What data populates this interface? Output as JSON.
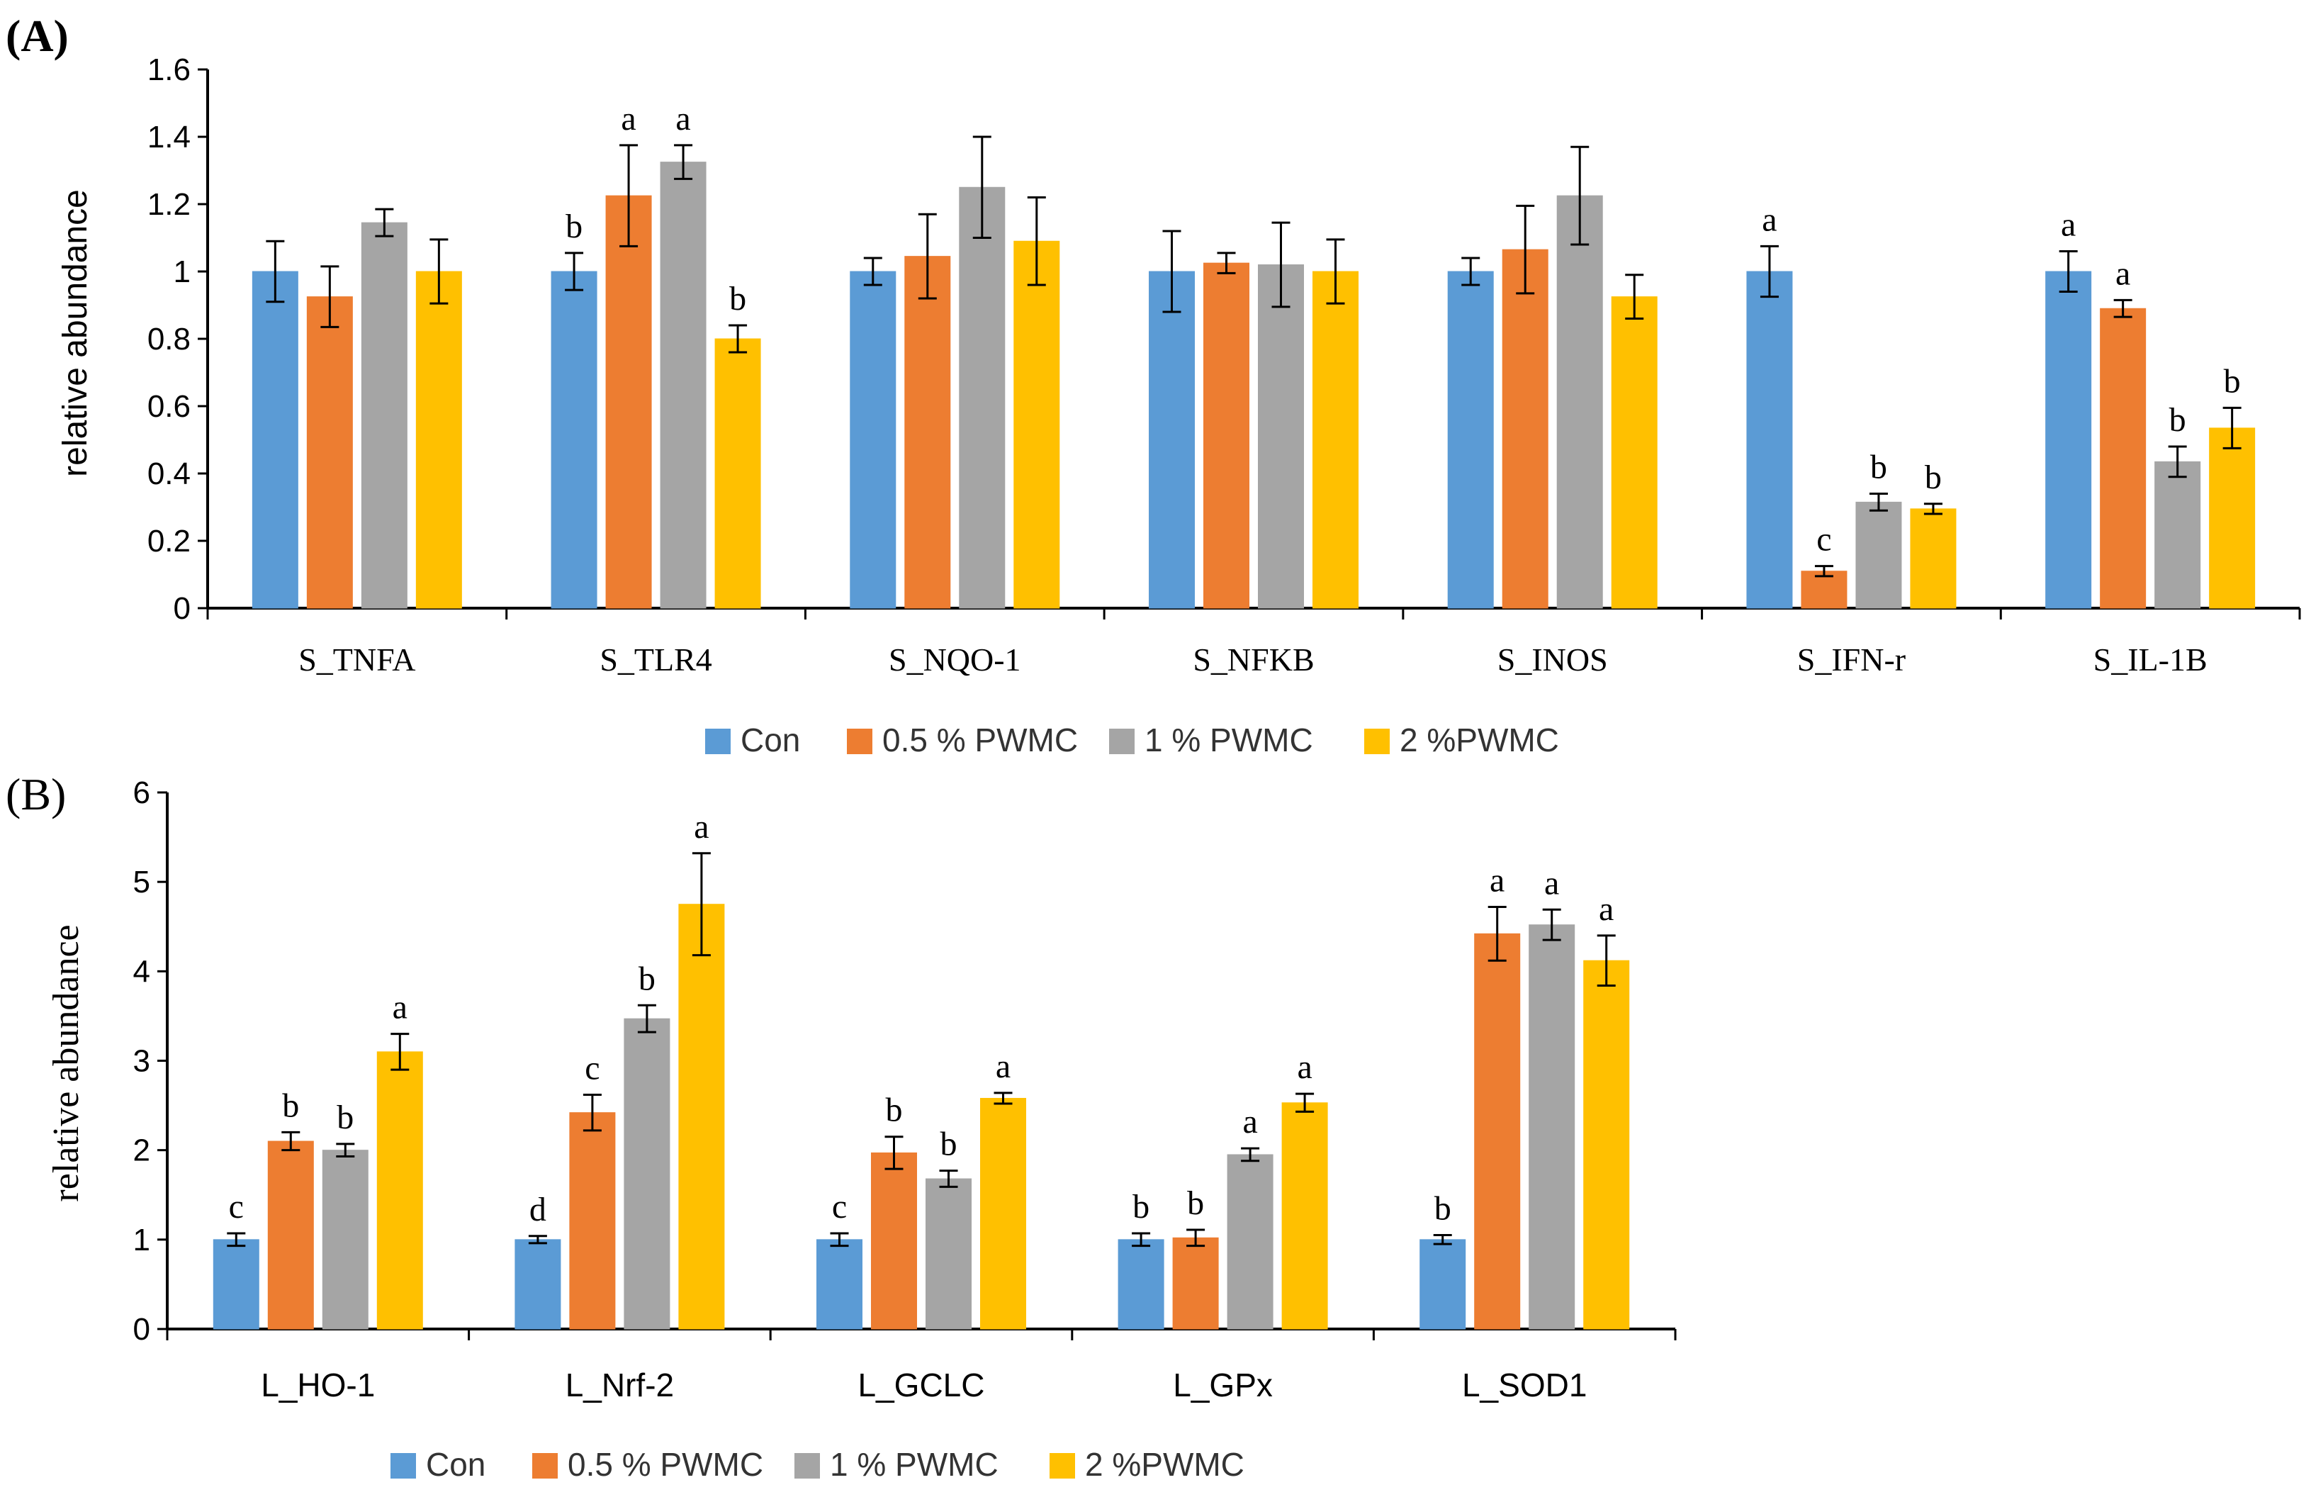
{
  "colors": {
    "Con": "#5B9BD5",
    "0.5 % PWMC": "#ED7D31",
    "1 % PWMC": "#A5A5A5",
    "2 %PWMC": "#FFC000"
  },
  "chart_data": [
    {
      "type": "bar",
      "panel_label": "(A)",
      "title": "",
      "xlabel": "",
      "ylabel": "relative abundance",
      "ylim": [
        0,
        1.6
      ],
      "yticks": [
        "0",
        "0.2",
        "0.4",
        "0.6",
        "0.8",
        "1",
        "1.2",
        "1.4",
        "1.6"
      ],
      "categories": [
        "S_TNFA",
        "S_TLR4",
        "S_NQO-1",
        "S_NFKB",
        "S_INOS",
        "S_IFN-r",
        "S_IL-1B"
      ],
      "legend": [
        "Con",
        "0.5 % PWMC",
        "1 % PWMC",
        "2 %PWMC"
      ],
      "legend_position": "bottom",
      "series": [
        {
          "name": "Con",
          "values": [
            1.0,
            1.0,
            1.0,
            1.0,
            1.0,
            1.0,
            1.0
          ],
          "errors": [
            0.09,
            0.055,
            0.04,
            0.12,
            0.04,
            0.075,
            0.06
          ],
          "labels": [
            "",
            "b",
            "",
            "",
            "",
            "a",
            "a"
          ]
        },
        {
          "name": "0.5 % PWMC",
          "values": [
            0.925,
            1.225,
            1.045,
            1.025,
            1.065,
            0.11,
            0.89
          ],
          "errors": [
            0.09,
            0.15,
            0.125,
            0.03,
            0.13,
            0.015,
            0.025
          ],
          "labels": [
            "",
            "a",
            "",
            "",
            "",
            "c",
            "a"
          ]
        },
        {
          "name": "1 % PWMC",
          "values": [
            1.145,
            1.325,
            1.25,
            1.02,
            1.225,
            0.315,
            0.435
          ],
          "errors": [
            0.04,
            0.05,
            0.15,
            0.125,
            0.145,
            0.025,
            0.045
          ],
          "labels": [
            "",
            "a",
            "",
            "",
            "",
            "b",
            "b"
          ]
        },
        {
          "name": "2 %PWMC",
          "values": [
            1.0,
            0.8,
            1.09,
            1.0,
            0.925,
            0.295,
            0.535
          ],
          "errors": [
            0.095,
            0.04,
            0.13,
            0.095,
            0.065,
            0.015,
            0.06
          ],
          "labels": [
            "",
            "b",
            "",
            "",
            "",
            "b",
            "b"
          ]
        }
      ]
    },
    {
      "type": "bar",
      "panel_label": "(B)",
      "title": "",
      "xlabel": "",
      "ylabel": "relative abundance",
      "ylim": [
        0,
        6
      ],
      "yticks": [
        "0",
        "1",
        "2",
        "3",
        "4",
        "5",
        "6"
      ],
      "categories": [
        "L_HO-1",
        "L_Nrf-2",
        "L_GCLC",
        "L_GPx",
        "L_SOD1"
      ],
      "legend": [
        "Con",
        "0.5 % PWMC",
        "1 % PWMC",
        "2 %PWMC"
      ],
      "legend_position": "bottom",
      "series": [
        {
          "name": "Con",
          "values": [
            1.0,
            1.0,
            1.0,
            1.0,
            1.0
          ],
          "errors": [
            0.07,
            0.04,
            0.07,
            0.07,
            0.05
          ],
          "labels": [
            "c",
            "d",
            "c",
            "b",
            "b"
          ]
        },
        {
          "name": "0.5 % PWMC",
          "values": [
            2.1,
            2.42,
            1.97,
            1.02,
            4.42
          ],
          "errors": [
            0.1,
            0.2,
            0.18,
            0.09,
            0.3
          ],
          "labels": [
            "b",
            "c",
            "b",
            "b",
            "a"
          ]
        },
        {
          "name": "1 % PWMC",
          "values": [
            2.0,
            3.47,
            1.68,
            1.95,
            4.52
          ],
          "errors": [
            0.07,
            0.15,
            0.09,
            0.07,
            0.17
          ],
          "labels": [
            "b",
            "b",
            "b",
            "a",
            "a"
          ]
        },
        {
          "name": "2 %PWMC",
          "values": [
            3.1,
            4.75,
            2.58,
            2.53,
            4.12
          ],
          "errors": [
            0.2,
            0.57,
            0.06,
            0.1,
            0.28
          ],
          "labels": [
            "a",
            "a",
            "a",
            "a",
            "a"
          ]
        }
      ]
    }
  ]
}
